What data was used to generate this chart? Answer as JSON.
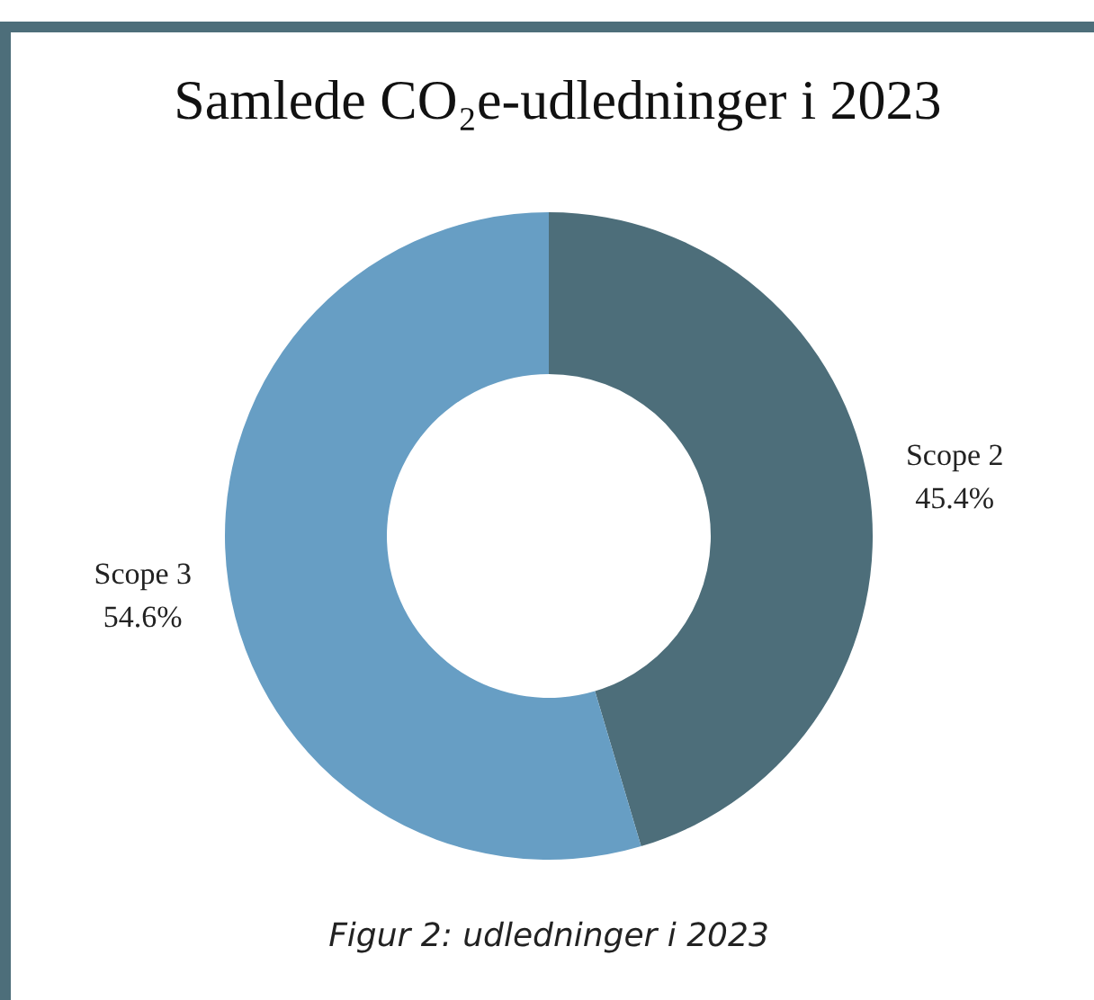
{
  "chart_data": {
    "type": "donut",
    "title": "Samlede CO₂e-udledninger i 2023",
    "categories": [
      "Scope 2",
      "Scope 3"
    ],
    "values": [
      45.4,
      54.6
    ],
    "colors": [
      "#4d6e7a",
      "#679ec4"
    ],
    "value_labels": [
      "45.4%",
      "54.6%"
    ],
    "annotations": [
      "Figur 2: udledninger i 2023"
    ]
  }
}
